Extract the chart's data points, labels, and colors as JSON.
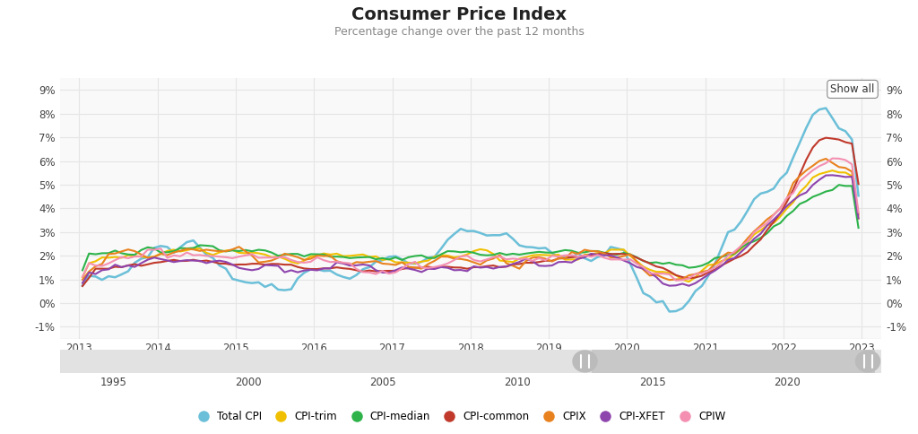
{
  "title": "Consumer Price Index",
  "subtitle": "Percentage change over the past 12 months",
  "xlim": [
    2012.75,
    2023.25
  ],
  "ylim": [
    -0.015,
    0.095
  ],
  "yticks": [
    -0.01,
    0.0,
    0.01,
    0.02,
    0.03,
    0.04,
    0.05,
    0.06,
    0.07,
    0.08,
    0.09
  ],
  "ytick_labels": [
    "-1%",
    "0%",
    "1%",
    "2%",
    "3%",
    "4%",
    "5%",
    "6%",
    "7%",
    "8%",
    "9%"
  ],
  "xticks": [
    2013,
    2014,
    2015,
    2016,
    2017,
    2018,
    2019,
    2020,
    2021,
    2022,
    2023
  ],
  "background_color": "#ffffff",
  "plot_bg_color": "#f9f9f9",
  "grid_color": "#e5e5e5",
  "legend_labels": [
    "Total CPI",
    "CPI-trim",
    "CPI-median",
    "CPI-common",
    "CPIX",
    "CPI-XFET",
    "CPIW"
  ],
  "legend_colors": [
    "#6bbfd8",
    "#f0c000",
    "#2db34a",
    "#c0392b",
    "#e8821e",
    "#8e44ad",
    "#f48fb1"
  ],
  "show_all_text": "Show all",
  "timeline_xticks": [
    1995,
    2000,
    2005,
    2010,
    2015,
    2020
  ],
  "timeline_xlim": [
    1993,
    2023.5
  ]
}
